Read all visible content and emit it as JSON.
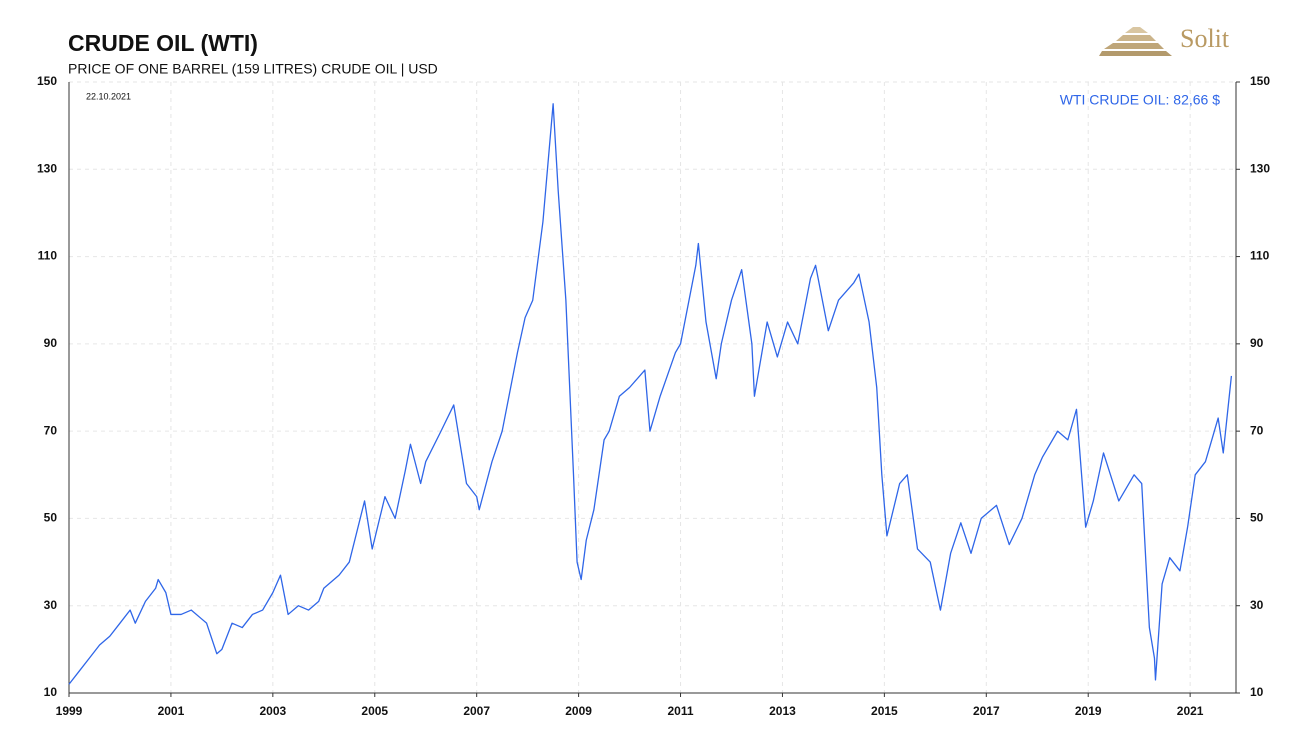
{
  "logo": "Solit",
  "chart_data": {
    "type": "line",
    "title": "CRUDE OIL (WTI)",
    "subtitle": "PRICE OF ONE BARREL (159 LITRES) CRUDE OIL | USD",
    "annotation": "22.10.2021",
    "x": [
      1999.0,
      1999.2,
      1999.4,
      1999.6,
      1999.8,
      2000.0,
      2000.2,
      2000.3,
      2000.5,
      2000.7,
      2000.75,
      2000.9,
      2001.0,
      2001.2,
      2001.4,
      2001.6,
      2001.7,
      2001.9,
      2002.0,
      2002.2,
      2002.4,
      2002.6,
      2002.8,
      2003.0,
      2003.15,
      2003.3,
      2003.5,
      2003.7,
      2003.9,
      2004.0,
      2004.3,
      2004.5,
      2004.8,
      2004.95,
      2005.2,
      2005.4,
      2005.6,
      2005.7,
      2005.9,
      2006.0,
      2006.3,
      2006.55,
      2006.8,
      2007.0,
      2007.05,
      2007.3,
      2007.5,
      2007.8,
      2007.95,
      2008.1,
      2008.3,
      2008.5,
      2008.6,
      2008.75,
      2008.9,
      2008.97,
      2009.05,
      2009.15,
      2009.3,
      2009.5,
      2009.6,
      2009.8,
      2010.0,
      2010.3,
      2010.4,
      2010.6,
      2010.9,
      2011.0,
      2011.3,
      2011.35,
      2011.5,
      2011.7,
      2011.8,
      2012.0,
      2012.2,
      2012.4,
      2012.45,
      2012.7,
      2012.9,
      2013.1,
      2013.3,
      2013.55,
      2013.65,
      2013.9,
      2014.1,
      2014.4,
      2014.5,
      2014.7,
      2014.85,
      2014.95,
      2015.05,
      2015.3,
      2015.45,
      2015.65,
      2015.9,
      2016.1,
      2016.3,
      2016.5,
      2016.7,
      2016.9,
      2017.2,
      2017.45,
      2017.7,
      2017.95,
      2018.1,
      2018.4,
      2018.6,
      2018.77,
      2018.95,
      2019.1,
      2019.3,
      2019.6,
      2019.9,
      2020.05,
      2020.2,
      2020.3,
      2020.32,
      2020.45,
      2020.6,
      2020.8,
      2020.95,
      2021.1,
      2021.3,
      2021.55,
      2021.65,
      2021.81
    ],
    "series": [
      {
        "name": "WTI CRUDE OIL: 82,66 $",
        "color": "#2f66e8",
        "values": [
          12,
          15,
          18,
          21,
          23,
          26,
          29,
          26,
          31,
          34,
          36,
          33,
          28,
          28,
          29,
          27,
          26,
          19,
          20,
          26,
          25,
          28,
          29,
          33,
          37,
          28,
          30,
          29,
          31,
          34,
          37,
          40,
          54,
          43,
          55,
          50,
          61,
          67,
          58,
          63,
          70,
          76,
          58,
          55,
          52,
          63,
          70,
          88,
          96,
          100,
          118,
          145,
          125,
          100,
          60,
          40,
          36,
          45,
          52,
          68,
          70,
          78,
          80,
          84,
          70,
          78,
          88,
          90,
          108,
          113,
          95,
          82,
          90,
          100,
          107,
          90,
          78,
          95,
          87,
          95,
          90,
          105,
          108,
          93,
          100,
          104,
          106,
          95,
          80,
          60,
          46,
          58,
          60,
          43,
          40,
          29,
          42,
          49,
          42,
          50,
          53,
          44,
          50,
          60,
          64,
          70,
          68,
          75,
          48,
          54,
          65,
          54,
          60,
          58,
          25,
          18,
          13,
          35,
          41,
          38,
          48,
          60,
          63,
          73,
          65,
          82.66
        ]
      }
    ],
    "xlim": [
      1999,
      2021.9
    ],
    "xticks": [
      1999,
      2001,
      2003,
      2005,
      2007,
      2009,
      2011,
      2013,
      2015,
      2017,
      2019,
      2021
    ],
    "ylim": [
      10,
      150
    ],
    "yticks": [
      10,
      30,
      50,
      70,
      90,
      110,
      130,
      150
    ],
    "y2lim": [
      10,
      150
    ],
    "y2ticks": [
      10,
      30,
      50,
      70,
      90,
      110,
      130,
      150
    ],
    "grid": true,
    "legend": "top-right"
  }
}
